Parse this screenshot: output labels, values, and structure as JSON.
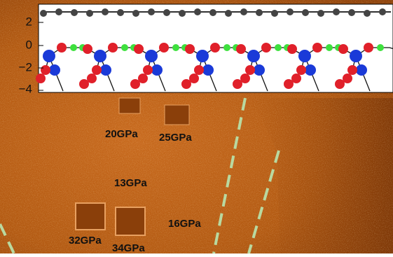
{
  "inset": {
    "y_tick_labels": [
      "2",
      "0",
      "−2",
      "−4"
    ]
  },
  "annotations": [
    "20GPa",
    "25GPa",
    "13GPa",
    "16GPa",
    "32GPa",
    "34GPa"
  ]
}
